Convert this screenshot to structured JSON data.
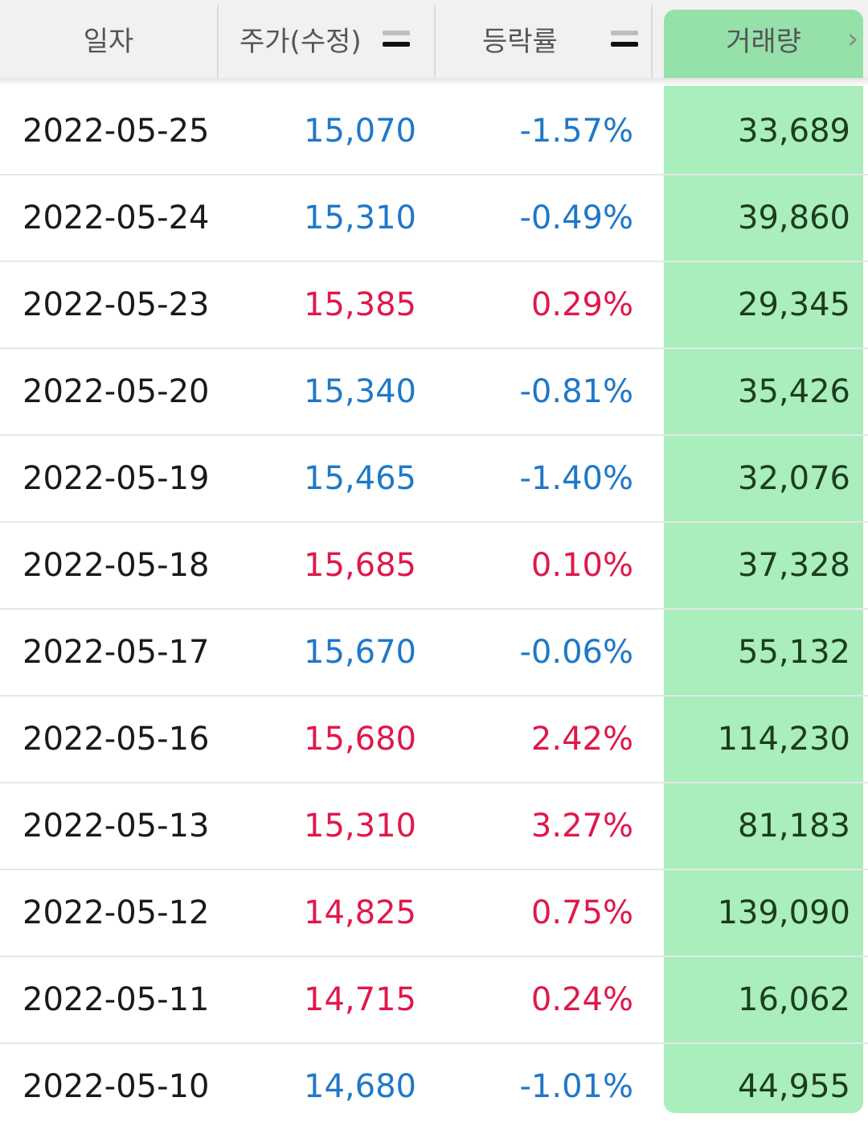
{
  "header": {
    "col_date": "일자",
    "col_price": "주가(수정)",
    "col_rate": "등락률",
    "col_volume": "거래량"
  },
  "colors": {
    "down": "#1f78c8",
    "up": "#e0184a",
    "highlight": "#a9eebc"
  },
  "rows": [
    {
      "date": "2022-05-25",
      "price": "15,070",
      "rate": "-1.57%",
      "volume": "33,689",
      "dir": "down"
    },
    {
      "date": "2022-05-24",
      "price": "15,310",
      "rate": "-0.49%",
      "volume": "39,860",
      "dir": "down"
    },
    {
      "date": "2022-05-23",
      "price": "15,385",
      "rate": "0.29%",
      "volume": "29,345",
      "dir": "up"
    },
    {
      "date": "2022-05-20",
      "price": "15,340",
      "rate": "-0.81%",
      "volume": "35,426",
      "dir": "down"
    },
    {
      "date": "2022-05-19",
      "price": "15,465",
      "rate": "-1.40%",
      "volume": "32,076",
      "dir": "down"
    },
    {
      "date": "2022-05-18",
      "price": "15,685",
      "rate": "0.10%",
      "volume": "37,328",
      "dir": "up"
    },
    {
      "date": "2022-05-17",
      "price": "15,670",
      "rate": "-0.06%",
      "volume": "55,132",
      "dir": "down"
    },
    {
      "date": "2022-05-16",
      "price": "15,680",
      "rate": "2.42%",
      "volume": "114,230",
      "dir": "up"
    },
    {
      "date": "2022-05-13",
      "price": "15,310",
      "rate": "3.27%",
      "volume": "81,183",
      "dir": "up"
    },
    {
      "date": "2022-05-12",
      "price": "14,825",
      "rate": "0.75%",
      "volume": "139,090",
      "dir": "up"
    },
    {
      "date": "2022-05-11",
      "price": "14,715",
      "rate": "0.24%",
      "volume": "16,062",
      "dir": "up"
    },
    {
      "date": "2022-05-10",
      "price": "14,680",
      "rate": "-1.01%",
      "volume": "44,955",
      "dir": "down"
    }
  ]
}
